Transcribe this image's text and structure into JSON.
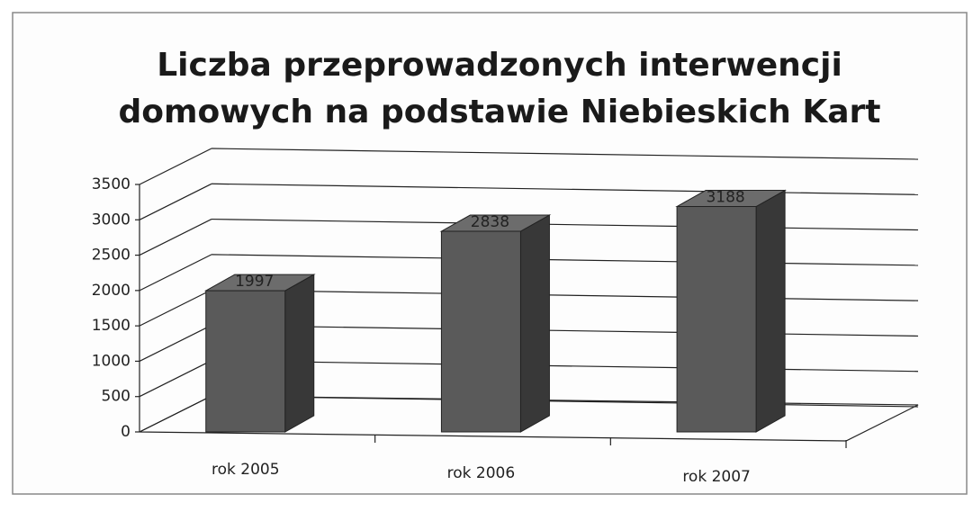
{
  "chart_data": {
    "type": "bar3d",
    "title": [
      "Liczba przeprowadzonych interwencji",
      "domowych na podstawie Niebieskich Kart"
    ],
    "categories": [
      "rok 2005",
      "rok 2006",
      "rok 2007"
    ],
    "values": [
      1997,
      2838,
      3188
    ],
    "color": "#5a5a5a",
    "ylim": [
      0,
      3500
    ],
    "yticks": [
      0,
      500,
      1000,
      1500,
      2000,
      2500,
      3000,
      3500
    ],
    "grid": true
  }
}
